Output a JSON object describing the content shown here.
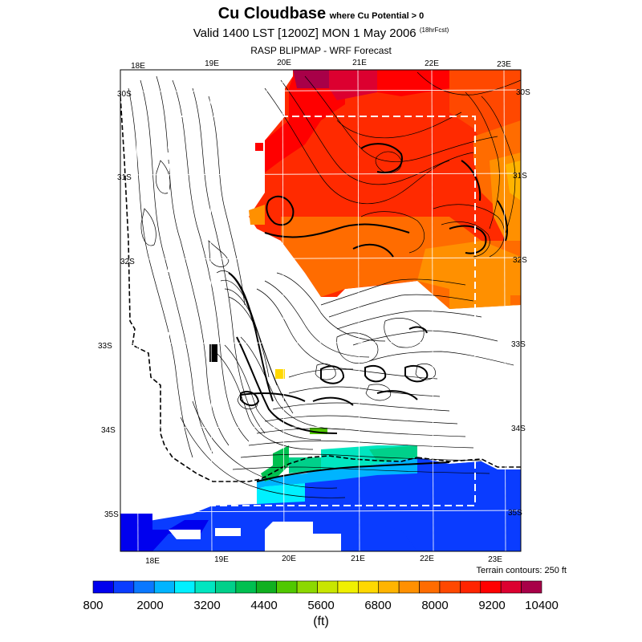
{
  "header": {
    "title": "Cu Cloudbase",
    "subtitle": "where Cu Potential > 0",
    "valid_text": "Valid 1400 LST [1200Z] MON 1 May 2006",
    "forecast_hours": "(18hrFcst)",
    "source": "RASP BLIPMAP - WRF Forecast"
  },
  "axes": {
    "top_lon_labels": [
      "18E",
      "19E",
      "20E",
      "21E",
      "22E",
      "23E"
    ],
    "bottom_lon_labels": [
      "18E",
      "19E",
      "20E",
      "21E",
      "22E",
      "23E"
    ],
    "left_lat_labels": [
      "30S",
      "31S",
      "32S",
      "33S",
      "34S",
      "35S"
    ],
    "right_lat_labels": [
      "30S",
      "31S",
      "32S",
      "33S",
      "34S",
      "35S"
    ]
  },
  "terrain_note": "Terrain contours: 250 ft",
  "colorbar": {
    "labels": [
      "800",
      "2000",
      "3200",
      "4400",
      "5600",
      "6800",
      "8000",
      "9200",
      "10400"
    ],
    "units": "(ft)",
    "colors": [
      "#0000ee",
      "#0a3cff",
      "#0a78ff",
      "#00b4ff",
      "#00f0ff",
      "#00e6c0",
      "#00d08a",
      "#00c050",
      "#10b020",
      "#50c800",
      "#8cd800",
      "#c8e600",
      "#f0f000",
      "#ffd800",
      "#ffb400",
      "#ff9000",
      "#ff6c00",
      "#ff4800",
      "#ff2400",
      "#ff0000",
      "#dc0030",
      "#a80048"
    ]
  }
}
